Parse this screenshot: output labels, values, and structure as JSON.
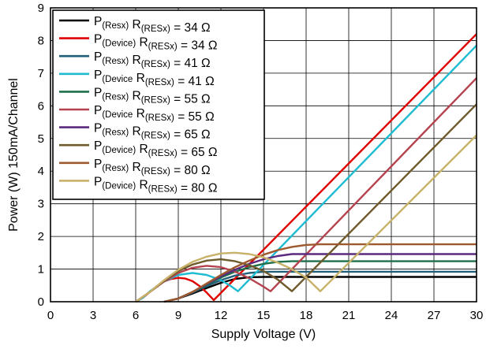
{
  "chart_data": {
    "type": "line",
    "xlabel": "Supply Voltage (V)",
    "ylabel": "Power (W) 150mA/Channel",
    "xlim": [
      0,
      30
    ],
    "ylim": [
      0,
      9
    ],
    "xticks": [
      0,
      3,
      6,
      9,
      12,
      15,
      18,
      21,
      24,
      27,
      30
    ],
    "yticks": [
      0,
      1,
      2,
      3,
      4,
      5,
      6,
      7,
      8,
      9
    ],
    "grid": true,
    "legend_position": "top-left",
    "series": [
      {
        "name": "P(Resx) R(RESx) = 34 Ω",
        "label_parts": [
          "P",
          "(Resx)",
          " R",
          "(RESx)",
          " = 34 Ω"
        ],
        "color": "#000000",
        "x": [
          8,
          9,
          10,
          11,
          12,
          13,
          14,
          15,
          30
        ],
        "y": [
          0.0,
          0.1,
          0.25,
          0.42,
          0.58,
          0.7,
          0.75,
          0.76,
          0.76
        ]
      },
      {
        "name": "P(Device) R(RESx) = 34 Ω",
        "label_parts": [
          "P",
          "(Device)",
          " R",
          "(RESx)",
          " = 34 Ω"
        ],
        "color": "#e00000",
        "x": [
          6,
          6.5,
          7,
          7.5,
          8,
          8.5,
          9,
          9.5,
          10,
          10.5,
          11,
          11.5,
          30
        ],
        "y": [
          0.0,
          0.12,
          0.3,
          0.48,
          0.62,
          0.7,
          0.73,
          0.71,
          0.63,
          0.48,
          0.28,
          0.05,
          8.2
        ]
      },
      {
        "name": "P(Resx) R(RESx) = 41 Ω",
        "label_parts": [
          "P",
          "(Resx)",
          " R",
          "(RESx)",
          " = 41 Ω"
        ],
        "color": "#1f5f7a",
        "x": [
          8,
          9,
          10,
          11,
          12,
          13,
          14,
          15,
          30
        ],
        "y": [
          0.0,
          0.1,
          0.28,
          0.48,
          0.66,
          0.8,
          0.88,
          0.92,
          0.92
        ]
      },
      {
        "name": "P(Device R(RESx) = 41 Ω",
        "label_parts": [
          "P",
          "(Device",
          " R",
          "(RESx)",
          " = 41 Ω"
        ],
        "color": "#1fbcd1",
        "x": [
          6,
          6.5,
          7,
          8,
          9,
          10,
          11,
          12,
          12.7,
          13.2,
          30
        ],
        "y": [
          0.0,
          0.12,
          0.32,
          0.62,
          0.82,
          0.88,
          0.82,
          0.66,
          0.48,
          0.32,
          7.85
        ]
      },
      {
        "name": "P(Resx) R(RESx) = 55 Ω",
        "label_parts": [
          "P",
          "(Resx)",
          " R",
          "(RESx)",
          " = 55 Ω"
        ],
        "color": "#1f6f4a",
        "x": [
          8,
          9,
          10,
          11,
          12,
          13,
          14,
          15,
          16,
          17,
          30
        ],
        "y": [
          0.0,
          0.1,
          0.3,
          0.52,
          0.74,
          0.92,
          1.06,
          1.16,
          1.22,
          1.24,
          1.24
        ]
      },
      {
        "name": "P(Device R(RESx) = 55 Ω",
        "label_parts": [
          "P",
          "(Device",
          " R",
          "(RESx)",
          " = 55 Ω"
        ],
        "color": "#b5434f",
        "x": [
          6,
          7,
          8,
          9,
          10,
          11,
          12,
          13,
          14,
          15,
          15.5,
          30
        ],
        "y": [
          0.0,
          0.3,
          0.62,
          0.88,
          1.04,
          1.1,
          1.06,
          0.92,
          0.72,
          0.46,
          0.32,
          6.85
        ]
      },
      {
        "name": "P(Resx) R(RESx) = 65 Ω",
        "label_parts": [
          "P",
          "(Resx)",
          " R",
          "(RESx)",
          " = 65 Ω"
        ],
        "color": "#5a2a7e",
        "x": [
          8,
          9,
          10,
          11,
          12,
          13,
          14,
          15,
          16,
          17,
          30
        ],
        "y": [
          0.0,
          0.1,
          0.3,
          0.54,
          0.78,
          0.98,
          1.16,
          1.3,
          1.4,
          1.46,
          1.46
        ]
      },
      {
        "name": "P(Device) R(RESx) = 65 Ω",
        "label_parts": [
          "P",
          "(Device)",
          " R",
          "(RESx)",
          " = 65 Ω"
        ],
        "color": "#6e5a2a",
        "x": [
          6,
          7,
          8,
          9,
          10,
          11,
          12,
          13,
          14,
          15,
          16,
          17,
          30
        ],
        "y": [
          0.0,
          0.3,
          0.64,
          0.94,
          1.14,
          1.26,
          1.3,
          1.24,
          1.12,
          0.94,
          0.68,
          0.32,
          6.05
        ]
      },
      {
        "name": "P(Resx) R(RESx) = 80 Ω",
        "label_parts": [
          "P",
          "(Resx)",
          " R",
          "(RESx)",
          " = 80 Ω"
        ],
        "color": "#9e5a2e",
        "x": [
          8,
          9,
          10,
          11,
          12,
          13,
          14,
          15,
          16,
          17,
          18,
          19,
          30
        ],
        "y": [
          0.0,
          0.1,
          0.3,
          0.56,
          0.82,
          1.06,
          1.26,
          1.44,
          1.58,
          1.68,
          1.74,
          1.76,
          1.76
        ]
      },
      {
        "name": "P(Device) R(RESx) = 80 Ω",
        "label_parts": [
          "P",
          "(Device)",
          " R",
          "(RESx)",
          " = 80 Ω"
        ],
        "color": "#c8b26a",
        "x": [
          6,
          7,
          8,
          9,
          10,
          11,
          12,
          13,
          14,
          15,
          16,
          17,
          18,
          19,
          30
        ],
        "y": [
          0.0,
          0.3,
          0.66,
          0.98,
          1.22,
          1.38,
          1.48,
          1.5,
          1.46,
          1.36,
          1.2,
          1.0,
          0.74,
          0.32,
          5.1
        ]
      }
    ]
  }
}
